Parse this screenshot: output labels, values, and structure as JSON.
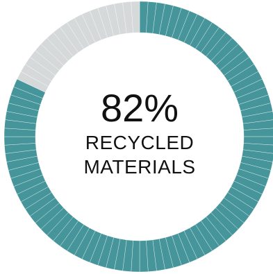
{
  "chart_data": {
    "type": "pie",
    "value_percent": 82,
    "remaining_percent": 18,
    "segment_count": 100,
    "center_label": "82%",
    "caption_lines": [
      "RECYCLED",
      "MATERIALS"
    ],
    "colors": {
      "filled": "#45959a",
      "empty": "#d6d9da",
      "separator": "#ffffff"
    }
  }
}
